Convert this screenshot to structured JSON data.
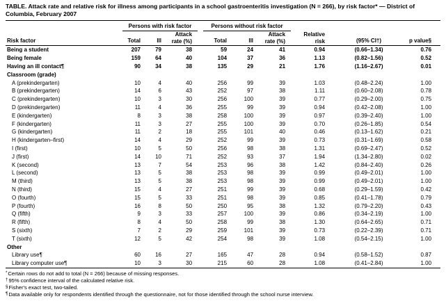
{
  "title": "TABLE. Attack rate and relative risk for illness among participants in a school gastroenteritis investigation (N = 266), by risk factor* — District of Columbia, February 2007",
  "header": {
    "group_with": "Persons with risk factor",
    "group_without": "Persons without risk factor",
    "risk_factor": "Risk factor",
    "total": "Total",
    "ill": "Ill",
    "attack_line1": "Attack",
    "attack_line2": "rate (%)",
    "relative_line1": "Relative",
    "relative_line2": "risk",
    "ci": "(95% CI†)",
    "p_value": "p value§"
  },
  "rows": [
    {
      "label": "Being a student",
      "bold": true,
      "values": [
        "207",
        "79",
        "38",
        "59",
        "24",
        "41",
        "0.94",
        "(0.66–1.34)",
        "0.76"
      ]
    },
    {
      "label": "Being female",
      "bold": true,
      "values": [
        "159",
        "64",
        "40",
        "104",
        "37",
        "36",
        "1.13",
        "(0.82–1.56)",
        "0.52"
      ]
    },
    {
      "label": "Having an ill contact¶",
      "bold": true,
      "values": [
        "90",
        "34",
        "38",
        "135",
        "29",
        "21",
        "1.76",
        "(1.16–2.67)",
        "0.01"
      ]
    },
    {
      "label": "Classroom (grade)",
      "section": true
    },
    {
      "label": "A (prekindergarten)",
      "indent": true,
      "values": [
        "10",
        "4",
        "40",
        "256",
        "99",
        "39",
        "1.03",
        "(0.48–2.24)",
        "1.00"
      ]
    },
    {
      "label": "B (prekindergarten)",
      "indent": true,
      "values": [
        "14",
        "6",
        "43",
        "252",
        "97",
        "38",
        "1.11",
        "(0.60–2.08)",
        "0.78"
      ]
    },
    {
      "label": "C (prekindergarten)",
      "indent": true,
      "values": [
        "10",
        "3",
        "30",
        "256",
        "100",
        "39",
        "0.77",
        "(0.29–2.00)",
        "0.75"
      ]
    },
    {
      "label": "D (prekindergarten)",
      "indent": true,
      "values": [
        "11",
        "4",
        "36",
        "255",
        "99",
        "39",
        "0.94",
        "(0.42–2.08)",
        "1.00"
      ]
    },
    {
      "label": "E (kindergarten)",
      "indent": true,
      "values": [
        "8",
        "3",
        "38",
        "258",
        "100",
        "39",
        "0.97",
        "(0.39–2.40)",
        "1.00"
      ]
    },
    {
      "label": "F (kindergarten)",
      "indent": true,
      "values": [
        "11",
        "3",
        "27",
        "255",
        "100",
        "39",
        "0.70",
        "(0.26–1.85)",
        "0.54"
      ]
    },
    {
      "label": "G (kindergarten)",
      "indent": true,
      "values": [
        "11",
        "2",
        "18",
        "255",
        "101",
        "40",
        "0.46",
        "(0.13–1.62)",
        "0.21"
      ]
    },
    {
      "label": "H (kindergarten–first)",
      "indent": true,
      "values": [
        "14",
        "4",
        "29",
        "252",
        "99",
        "39",
        "0.73",
        "(0.31–1.69)",
        "0.58"
      ]
    },
    {
      "label": "I (first)",
      "indent": true,
      "values": [
        "10",
        "5",
        "50",
        "256",
        "98",
        "38",
        "1.31",
        "(0.69–2.47)",
        "0.52"
      ]
    },
    {
      "label": "J (first)",
      "indent": true,
      "values": [
        "14",
        "10",
        "71",
        "252",
        "93",
        "37",
        "1.94",
        "(1.34–2.80)",
        "0.02"
      ]
    },
    {
      "label": "K (second)",
      "indent": true,
      "values": [
        "13",
        "7",
        "54",
        "253",
        "96",
        "38",
        "1.42",
        "(0.84–2.40)",
        "0.26"
      ]
    },
    {
      "label": "L (second)",
      "indent": true,
      "values": [
        "13",
        "5",
        "38",
        "253",
        "98",
        "39",
        "0.99",
        "(0.49–2.01)",
        "1.00"
      ]
    },
    {
      "label": "M (third)",
      "indent": true,
      "values": [
        "13",
        "5",
        "38",
        "253",
        "98",
        "39",
        "0.99",
        "(0.49–2.01)",
        "1.00"
      ]
    },
    {
      "label": "N (third)",
      "indent": true,
      "values": [
        "15",
        "4",
        "27",
        "251",
        "99",
        "39",
        "0.68",
        "(0.29–1.59)",
        "0.42"
      ]
    },
    {
      "label": "O (fourth)",
      "indent": true,
      "values": [
        "15",
        "5",
        "33",
        "251",
        "98",
        "39",
        "0.85",
        "(0.41–1.78)",
        "0.79"
      ]
    },
    {
      "label": "P (fourth)",
      "indent": true,
      "values": [
        "16",
        "8",
        "50",
        "250",
        "95",
        "38",
        "1.32",
        "(0.79–2.20)",
        "0.43"
      ]
    },
    {
      "label": "Q (fifth)",
      "indent": true,
      "values": [
        "9",
        "3",
        "33",
        "257",
        "100",
        "39",
        "0.86",
        "(0.34–2.19)",
        "1.00"
      ]
    },
    {
      "label": "R (fifth)",
      "indent": true,
      "values": [
        "8",
        "4",
        "50",
        "258",
        "99",
        "38",
        "1.30",
        "(0.64–2.65)",
        "0.71"
      ]
    },
    {
      "label": "S (sixth)",
      "indent": true,
      "values": [
        "7",
        "2",
        "29",
        "259",
        "101",
        "39",
        "0.73",
        "(0.22–2.39)",
        "0.71"
      ]
    },
    {
      "label": "T (sixth)",
      "indent": true,
      "values": [
        "12",
        "5",
        "42",
        "254",
        "98",
        "39",
        "1.08",
        "(0.54–2.15)",
        "1.00"
      ]
    },
    {
      "label": "Other",
      "section": true
    },
    {
      "label": "Library use¶",
      "indent": true,
      "values": [
        "60",
        "16",
        "27",
        "165",
        "47",
        "28",
        "0.94",
        "(0.58–1.52)",
        "0.87"
      ]
    },
    {
      "label": "Library computer use¶",
      "indent": true,
      "values": [
        "10",
        "3",
        "30",
        "215",
        "60",
        "28",
        "1.08",
        "(0.41–2.84)",
        "1.00"
      ]
    }
  ],
  "footnotes": [
    {
      "marker": "*",
      "text": "Certain rows do not add to total (N = 266) because of missing responses."
    },
    {
      "marker": "†",
      "text": "95% confidence interval of the calculated relative risk."
    },
    {
      "marker": "§",
      "text": "Fisher's exact test, two-tailed."
    },
    {
      "marker": "¶",
      "text": "Data available only for respondents identified through the questionnaire, not for those identified through the school nurse interview."
    }
  ]
}
